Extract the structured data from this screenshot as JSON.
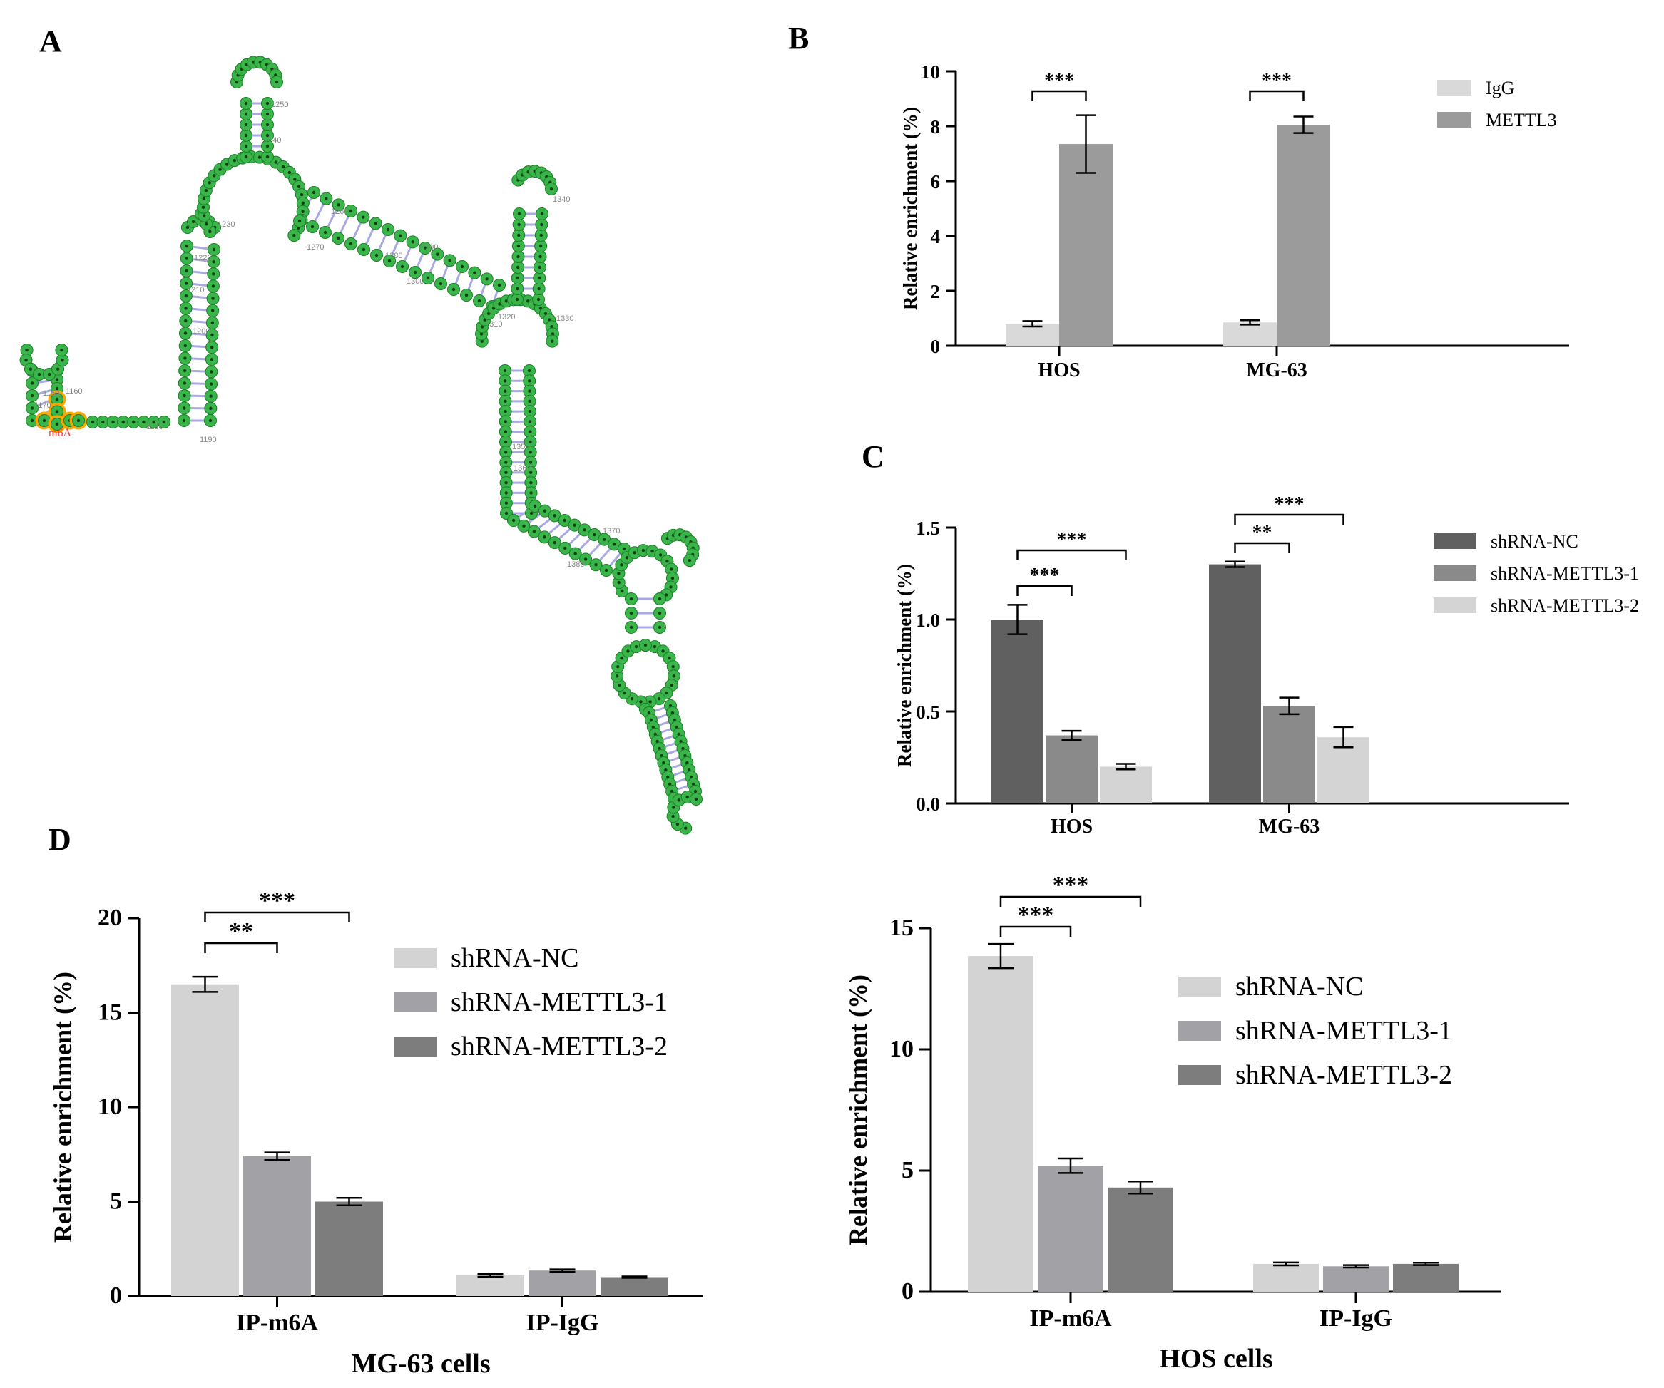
{
  "panel_labels": {
    "a": "A",
    "b": "B",
    "c": "C",
    "d": "D"
  },
  "rna_structure": {
    "site_label": "m6A",
    "base_color": "#39b54a",
    "pair_color": "#a9a9e6",
    "highlight_color": "#f7a800",
    "site_color": "#ff3333",
    "position_labels": [
      "1150",
      "1160",
      "1170",
      "1180",
      "1190",
      "1200",
      "1210",
      "1220",
      "1230",
      "1240",
      "1250",
      "1260",
      "1270",
      "1280",
      "1290",
      "1300",
      "1310",
      "1320",
      "1330",
      "1340",
      "1350",
      "1360",
      "1370",
      "1380"
    ]
  },
  "chart_data": [
    {
      "id": "B",
      "type": "bar",
      "categories": [
        "HOS",
        "MG-63"
      ],
      "ylabel": "Relative enrichment (%)",
      "ylim": [
        0,
        10
      ],
      "yticks": [
        "0",
        "2",
        "4",
        "6",
        "8",
        "10"
      ],
      "legend_position": "top-right",
      "series": [
        {
          "name": "IgG",
          "values": [
            0.8,
            0.85
          ],
          "errors": [
            0.1,
            0.08
          ],
          "color": "#d9d9d9"
        },
        {
          "name": "METTL3",
          "values": [
            7.35,
            8.05
          ],
          "errors": [
            1.05,
            0.3
          ],
          "color": "#9b9b9b"
        }
      ],
      "significance": [
        {
          "category": 0,
          "from": 0,
          "to": 1,
          "label": "***"
        },
        {
          "category": 1,
          "from": 0,
          "to": 1,
          "label": "***"
        }
      ]
    },
    {
      "id": "C",
      "type": "bar",
      "categories": [
        "HOS",
        "MG-63"
      ],
      "ylabel": "Relative enrichment (%)",
      "ylim": [
        0,
        1.5
      ],
      "yticks": [
        "0.0",
        "0.5",
        "1.0",
        "1.5"
      ],
      "legend_position": "top-right",
      "series": [
        {
          "name": "shRNA-NC",
          "values": [
            1.0,
            1.3
          ],
          "errors": [
            0.08,
            0.015
          ],
          "color": "#606060"
        },
        {
          "name": "shRNA-METTL3-1",
          "values": [
            0.37,
            0.53
          ],
          "errors": [
            0.025,
            0.045
          ],
          "color": "#8a8a8a"
        },
        {
          "name": "shRNA-METTL3-2",
          "values": [
            0.2,
            0.36
          ],
          "errors": [
            0.015,
            0.055
          ],
          "color": "#d4d4d4"
        }
      ],
      "significance": [
        {
          "category": 0,
          "from": 0,
          "to": 1,
          "label": "***"
        },
        {
          "category": 0,
          "from": 0,
          "to": 2,
          "label": "***"
        },
        {
          "category": 1,
          "from": 0,
          "to": 1,
          "label": "**"
        },
        {
          "category": 1,
          "from": 0,
          "to": 2,
          "label": "***"
        }
      ]
    },
    {
      "id": "D-left",
      "type": "bar",
      "categories": [
        "IP-m6A",
        "IP-IgG"
      ],
      "xlabel": "MG-63 cells",
      "ylabel": "Relative enrichment (%)",
      "ylim": [
        0,
        20
      ],
      "yticks": [
        "0",
        "5",
        "10",
        "15",
        "20"
      ],
      "legend_position": "top-right",
      "series": [
        {
          "name": "shRNA-NC",
          "values": [
            16.5,
            1.1
          ],
          "errors": [
            0.4,
            0.08
          ],
          "color": "#d3d3d3"
        },
        {
          "name": "shRNA-METTL3-1",
          "values": [
            7.4,
            1.35
          ],
          "errors": [
            0.2,
            0.06
          ],
          "color": "#a2a2a6"
        },
        {
          "name": "shRNA-METTL3-2",
          "values": [
            5.0,
            1.0
          ],
          "errors": [
            0.2,
            0.04
          ],
          "color": "#7d7d7d"
        }
      ],
      "significance": [
        {
          "category": 0,
          "from": 0,
          "to": 1,
          "label": "**"
        },
        {
          "category": 0,
          "from": 0,
          "to": 2,
          "label": "***"
        }
      ]
    },
    {
      "id": "D-right",
      "type": "bar",
      "categories": [
        "IP-m6A",
        "IP-IgG"
      ],
      "xlabel": "HOS cells",
      "ylabel": "Relative enrichment (%)",
      "ylim": [
        0,
        15
      ],
      "yticks": [
        "0",
        "5",
        "10",
        "15"
      ],
      "legend_position": "top-right",
      "series": [
        {
          "name": "shRNA-NC",
          "values": [
            13.85,
            1.15
          ],
          "errors": [
            0.5,
            0.06
          ],
          "color": "#d3d3d3"
        },
        {
          "name": "shRNA-METTL3-1",
          "values": [
            5.2,
            1.05
          ],
          "errors": [
            0.3,
            0.05
          ],
          "color": "#a2a2a6"
        },
        {
          "name": "shRNA-METTL3-2",
          "values": [
            4.3,
            1.15
          ],
          "errors": [
            0.25,
            0.05
          ],
          "color": "#7d7d7d"
        }
      ],
      "significance": [
        {
          "category": 0,
          "from": 0,
          "to": 1,
          "label": "***"
        },
        {
          "category": 0,
          "from": 0,
          "to": 2,
          "label": "***"
        }
      ]
    }
  ]
}
